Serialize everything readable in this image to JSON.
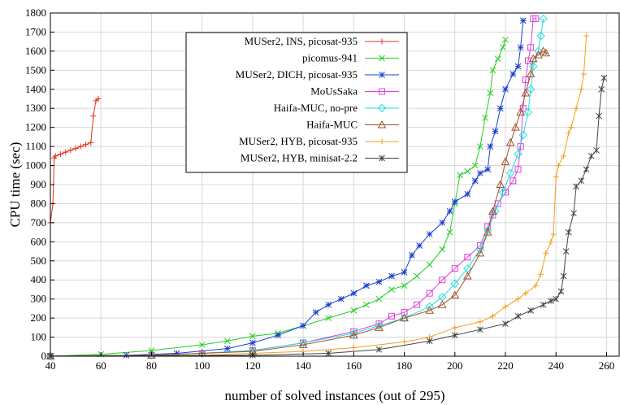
{
  "chart_data": {
    "type": "line",
    "xlabel": "number of solved instances (out of 295)",
    "ylabel": "CPU time (sec)",
    "xlim": [
      40,
      265
    ],
    "ylim": [
      0,
      1800
    ],
    "xticks": [
      40,
      60,
      80,
      100,
      120,
      140,
      160,
      180,
      200,
      220,
      240,
      260
    ],
    "yticks": [
      0,
      100,
      200,
      300,
      400,
      500,
      600,
      700,
      800,
      900,
      1000,
      1100,
      1200,
      1300,
      1400,
      1500,
      1600,
      1700,
      1800
    ],
    "grid": true,
    "legend_position": "top-center",
    "series": [
      {
        "name": "MUSer2, INS, picosat-935",
        "color": "#e8321e",
        "marker": "plus",
        "points": [
          [
            40,
            700
          ],
          [
            41,
            800
          ],
          [
            41.5,
            1040
          ],
          [
            42,
            1050
          ],
          [
            44,
            1060
          ],
          [
            46,
            1070
          ],
          [
            48,
            1080
          ],
          [
            50,
            1090
          ],
          [
            52,
            1100
          ],
          [
            54,
            1110
          ],
          [
            56,
            1120
          ],
          [
            57,
            1260
          ],
          [
            58,
            1340
          ],
          [
            59,
            1350
          ]
        ]
      },
      {
        "name": "picomus-941",
        "color": "#22cc22",
        "marker": "x",
        "points": [
          [
            40,
            0
          ],
          [
            60,
            10
          ],
          [
            80,
            30
          ],
          [
            100,
            60
          ],
          [
            110,
            80
          ],
          [
            120,
            105
          ],
          [
            130,
            120
          ],
          [
            140,
            160
          ],
          [
            150,
            200
          ],
          [
            160,
            240
          ],
          [
            165,
            270
          ],
          [
            170,
            300
          ],
          [
            175,
            350
          ],
          [
            180,
            370
          ],
          [
            185,
            420
          ],
          [
            190,
            480
          ],
          [
            195,
            560
          ],
          [
            198,
            650
          ],
          [
            200,
            800
          ],
          [
            202,
            950
          ],
          [
            205,
            970
          ],
          [
            208,
            1000
          ],
          [
            210,
            1100
          ],
          [
            212,
            1250
          ],
          [
            214,
            1380
          ],
          [
            215,
            1500
          ],
          [
            217,
            1560
          ],
          [
            219,
            1620
          ],
          [
            220,
            1660
          ]
        ]
      },
      {
        "name": "MUSer2, DICH, picosat-935",
        "color": "#1b3fd4",
        "marker": "star",
        "points": [
          [
            40,
            0
          ],
          [
            70,
            5
          ],
          [
            90,
            15
          ],
          [
            110,
            40
          ],
          [
            120,
            70
          ],
          [
            130,
            110
          ],
          [
            140,
            160
          ],
          [
            145,
            230
          ],
          [
            150,
            270
          ],
          [
            155,
            300
          ],
          [
            160,
            330
          ],
          [
            165,
            370
          ],
          [
            170,
            390
          ],
          [
            175,
            420
          ],
          [
            180,
            440
          ],
          [
            183,
            530
          ],
          [
            186,
            580
          ],
          [
            190,
            640
          ],
          [
            195,
            700
          ],
          [
            198,
            760
          ],
          [
            200,
            810
          ],
          [
            205,
            850
          ],
          [
            208,
            920
          ],
          [
            210,
            960
          ],
          [
            213,
            980
          ],
          [
            214,
            1100
          ],
          [
            216,
            1180
          ],
          [
            218,
            1300
          ],
          [
            220,
            1400
          ],
          [
            223,
            1480
          ],
          [
            225,
            1520
          ],
          [
            226,
            1620
          ],
          [
            227,
            1760
          ]
        ]
      },
      {
        "name": "MoUsSaka",
        "color": "#e040e0",
        "marker": "square",
        "points": [
          [
            40,
            0
          ],
          [
            80,
            5
          ],
          [
            100,
            15
          ],
          [
            120,
            30
          ],
          [
            140,
            70
          ],
          [
            160,
            130
          ],
          [
            170,
            170
          ],
          [
            175,
            210
          ],
          [
            180,
            230
          ],
          [
            185,
            270
          ],
          [
            190,
            330
          ],
          [
            195,
            400
          ],
          [
            200,
            460
          ],
          [
            205,
            520
          ],
          [
            210,
            580
          ],
          [
            213,
            680
          ],
          [
            215,
            740
          ],
          [
            217,
            800
          ],
          [
            220,
            860
          ],
          [
            223,
            920
          ],
          [
            225,
            980
          ],
          [
            226,
            1100
          ],
          [
            227,
            1300
          ],
          [
            228,
            1450
          ],
          [
            229,
            1550
          ],
          [
            230,
            1620
          ],
          [
            231,
            1770
          ],
          [
            232,
            1770
          ]
        ]
      },
      {
        "name": "Haifa-MUC, no-pre",
        "color": "#22dddd",
        "marker": "diamond",
        "points": [
          [
            40,
            0
          ],
          [
            80,
            5
          ],
          [
            100,
            15
          ],
          [
            120,
            30
          ],
          [
            140,
            70
          ],
          [
            160,
            120
          ],
          [
            170,
            160
          ],
          [
            180,
            200
          ],
          [
            190,
            260
          ],
          [
            195,
            310
          ],
          [
            200,
            380
          ],
          [
            205,
            460
          ],
          [
            210,
            560
          ],
          [
            213,
            660
          ],
          [
            216,
            760
          ],
          [
            219,
            860
          ],
          [
            222,
            960
          ],
          [
            225,
            1060
          ],
          [
            227,
            1160
          ],
          [
            229,
            1280
          ],
          [
            230,
            1400
          ],
          [
            231,
            1520
          ],
          [
            233,
            1600
          ],
          [
            234,
            1680
          ],
          [
            235,
            1770
          ]
        ]
      },
      {
        "name": "Haifa-MUC",
        "color": "#a0522d",
        "marker": "triangle",
        "points": [
          [
            40,
            0
          ],
          [
            80,
            5
          ],
          [
            100,
            15
          ],
          [
            120,
            25
          ],
          [
            140,
            60
          ],
          [
            160,
            110
          ],
          [
            170,
            150
          ],
          [
            180,
            200
          ],
          [
            190,
            240
          ],
          [
            195,
            270
          ],
          [
            200,
            320
          ],
          [
            205,
            420
          ],
          [
            210,
            540
          ],
          [
            213,
            650
          ],
          [
            215,
            760
          ],
          [
            218,
            900
          ],
          [
            220,
            1020
          ],
          [
            222,
            1120
          ],
          [
            224,
            1200
          ],
          [
            226,
            1280
          ],
          [
            228,
            1380
          ],
          [
            230,
            1480
          ],
          [
            231,
            1560
          ],
          [
            233,
            1580
          ],
          [
            235,
            1600
          ],
          [
            236,
            1590
          ]
        ]
      },
      {
        "name": "MUSer2, HYB, picosat-935",
        "color": "#f0a020",
        "marker": "plus",
        "points": [
          [
            40,
            0
          ],
          [
            100,
            5
          ],
          [
            140,
            25
          ],
          [
            160,
            45
          ],
          [
            180,
            75
          ],
          [
            190,
            100
          ],
          [
            200,
            150
          ],
          [
            210,
            180
          ],
          [
            215,
            210
          ],
          [
            220,
            260
          ],
          [
            225,
            300
          ],
          [
            228,
            330
          ],
          [
            232,
            370
          ],
          [
            234,
            430
          ],
          [
            236,
            540
          ],
          [
            238,
            600
          ],
          [
            239,
            640
          ],
          [
            240,
            940
          ],
          [
            241,
            1000
          ],
          [
            243,
            1050
          ],
          [
            245,
            1170
          ],
          [
            246,
            1200
          ],
          [
            248,
            1300
          ],
          [
            250,
            1400
          ],
          [
            251,
            1480
          ],
          [
            252,
            1680
          ]
        ]
      },
      {
        "name": "MUSer2, HYB, minisat-2.2",
        "color": "#444444",
        "marker": "asterisk",
        "points": [
          [
            40,
            0
          ],
          [
            120,
            5
          ],
          [
            150,
            15
          ],
          [
            170,
            35
          ],
          [
            190,
            80
          ],
          [
            200,
            110
          ],
          [
            210,
            140
          ],
          [
            220,
            170
          ],
          [
            225,
            210
          ],
          [
            230,
            240
          ],
          [
            235,
            270
          ],
          [
            238,
            290
          ],
          [
            240,
            300
          ],
          [
            242,
            340
          ],
          [
            243,
            420
          ],
          [
            244,
            550
          ],
          [
            245,
            650
          ],
          [
            247,
            750
          ],
          [
            248,
            890
          ],
          [
            250,
            920
          ],
          [
            252,
            980
          ],
          [
            254,
            1050
          ],
          [
            256,
            1080
          ],
          [
            257,
            1260
          ],
          [
            258,
            1400
          ],
          [
            259,
            1460
          ]
        ]
      }
    ]
  }
}
